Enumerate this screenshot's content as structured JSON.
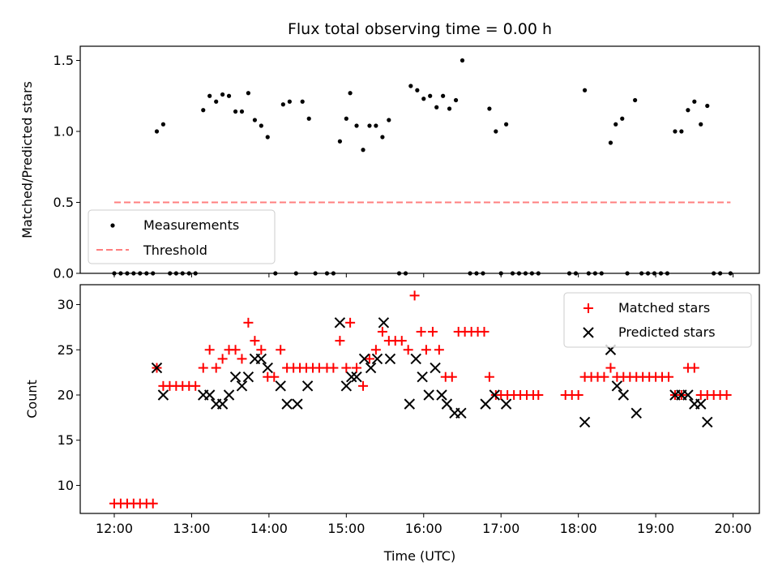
{
  "chart_data": [
    {
      "type": "scatter",
      "title": "Flux total observing time = 0.00 h",
      "xlabel": "",
      "ylabel": "Matched/Predicted stars",
      "xlim": [
        -0.44,
        8.34
      ],
      "ylim": [
        0,
        1.6
      ],
      "yticks": [
        0.0,
        0.5,
        1.0,
        1.5
      ],
      "ytick_labels": [
        "0.0",
        "0.5",
        "1.0",
        "1.5"
      ],
      "xticks": [
        0,
        1,
        2,
        3,
        4,
        5,
        6,
        7,
        8
      ],
      "legend_placement": "lower-left",
      "series": [
        {
          "name": "Measurements",
          "color": "#000000",
          "marker": "dot",
          "points": [
            [
              0,
              0
            ],
            [
              0.083,
              0
            ],
            [
              0.167,
              0
            ],
            [
              0.25,
              0
            ],
            [
              0.333,
              0
            ],
            [
              0.417,
              0
            ],
            [
              0.5,
              0
            ],
            [
              0.55,
              1.0
            ],
            [
              0.633,
              1.05
            ],
            [
              0.72,
              0
            ],
            [
              0.8,
              0
            ],
            [
              0.883,
              0
            ],
            [
              0.967,
              0
            ],
            [
              1.05,
              0
            ],
            [
              1.15,
              1.15
            ],
            [
              1.233,
              1.25
            ],
            [
              1.317,
              1.21
            ],
            [
              1.4,
              1.26
            ],
            [
              1.483,
              1.25
            ],
            [
              1.567,
              1.14
            ],
            [
              1.65,
              1.14
            ],
            [
              1.733,
              1.27
            ],
            [
              1.817,
              1.08
            ],
            [
              1.9,
              1.04
            ],
            [
              1.983,
              0.96
            ],
            [
              2.083,
              0
            ],
            [
              2.183,
              1.19
            ],
            [
              2.267,
              1.21
            ],
            [
              2.35,
              0
            ],
            [
              2.433,
              1.21
            ],
            [
              2.517,
              1.09
            ],
            [
              2.6,
              0
            ],
            [
              2.75,
              0
            ],
            [
              2.833,
              0
            ],
            [
              2.917,
              0.93
            ],
            [
              3.0,
              1.09
            ],
            [
              3.05,
              1.27
            ],
            [
              3.133,
              1.04
            ],
            [
              3.217,
              0.87
            ],
            [
              3.3,
              1.04
            ],
            [
              3.383,
              1.04
            ],
            [
              3.467,
              0.96
            ],
            [
              3.55,
              1.08
            ],
            [
              3.683,
              0
            ],
            [
              3.767,
              0
            ],
            [
              3.833,
              1.32
            ],
            [
              3.917,
              1.29
            ],
            [
              4.0,
              1.23
            ],
            [
              4.083,
              1.25
            ],
            [
              4.167,
              1.17
            ],
            [
              4.25,
              1.25
            ],
            [
              4.333,
              1.16
            ],
            [
              4.417,
              1.22
            ],
            [
              4.5,
              1.5
            ],
            [
              4.6,
              0
            ],
            [
              4.683,
              0
            ],
            [
              4.767,
              0
            ],
            [
              4.85,
              1.16
            ],
            [
              4.933,
              1.0
            ],
            [
              5.0,
              0
            ],
            [
              5.067,
              1.05
            ],
            [
              5.15,
              0
            ],
            [
              5.233,
              0
            ],
            [
              5.317,
              0
            ],
            [
              5.4,
              0
            ],
            [
              5.483,
              0
            ],
            [
              5.883,
              0
            ],
            [
              5.967,
              0
            ],
            [
              6.083,
              1.29
            ],
            [
              6.133,
              0
            ],
            [
              6.217,
              0
            ],
            [
              6.3,
              0
            ],
            [
              6.417,
              0.92
            ],
            [
              6.483,
              1.05
            ],
            [
              6.567,
              1.09
            ],
            [
              6.633,
              0
            ],
            [
              6.733,
              1.22
            ],
            [
              6.817,
              0
            ],
            [
              6.9,
              0
            ],
            [
              6.983,
              0
            ],
            [
              7.067,
              0
            ],
            [
              7.15,
              0
            ],
            [
              7.25,
              1.0
            ],
            [
              7.333,
              1.0
            ],
            [
              7.417,
              1.15
            ],
            [
              7.5,
              1.21
            ],
            [
              7.583,
              1.05
            ],
            [
              7.667,
              1.18
            ],
            [
              7.75,
              0
            ],
            [
              7.833,
              0
            ],
            [
              7.967,
              0
            ]
          ]
        },
        {
          "name": "Threshold",
          "color": "#ff7f7f",
          "style": "dashed",
          "x": [
            0,
            7.967
          ],
          "y": [
            0.5,
            0.5
          ]
        }
      ]
    },
    {
      "type": "scatter",
      "title": "",
      "xlabel": "Time (UTC)",
      "ylabel": "Count",
      "xlim": [
        -0.44,
        8.34
      ],
      "ylim": [
        6.9,
        32.2
      ],
      "yticks": [
        10,
        15,
        20,
        25,
        30
      ],
      "ytick_labels": [
        "10",
        "15",
        "20",
        "25",
        "30"
      ],
      "xticks": [
        0,
        1,
        2,
        3,
        4,
        5,
        6,
        7,
        8
      ],
      "xtick_labels": [
        "12:00",
        "13:00",
        "14:00",
        "15:00",
        "16:00",
        "17:00",
        "18:00",
        "19:00",
        "20:00"
      ],
      "legend_placement": "upper-right",
      "series": [
        {
          "name": "Matched stars",
          "color": "#ff0000",
          "marker": "plus",
          "points": [
            [
              0,
              8
            ],
            [
              0.083,
              8
            ],
            [
              0.167,
              8
            ],
            [
              0.25,
              8
            ],
            [
              0.333,
              8
            ],
            [
              0.417,
              8
            ],
            [
              0.5,
              8
            ],
            [
              0.55,
              23
            ],
            [
              0.633,
              21
            ],
            [
              0.717,
              21
            ],
            [
              0.8,
              21
            ],
            [
              0.883,
              21
            ],
            [
              0.967,
              21
            ],
            [
              1.05,
              21
            ],
            [
              1.15,
              23
            ],
            [
              1.233,
              25
            ],
            [
              1.317,
              23
            ],
            [
              1.4,
              24
            ],
            [
              1.483,
              25
            ],
            [
              1.567,
              25
            ],
            [
              1.65,
              24
            ],
            [
              1.733,
              28
            ],
            [
              1.817,
              26
            ],
            [
              1.9,
              25
            ],
            [
              1.983,
              22
            ],
            [
              2.067,
              22
            ],
            [
              2.15,
              25
            ],
            [
              2.233,
              23
            ],
            [
              2.317,
              23
            ],
            [
              2.4,
              23
            ],
            [
              2.483,
              23
            ],
            [
              2.567,
              23
            ],
            [
              2.65,
              23
            ],
            [
              2.75,
              23
            ],
            [
              2.833,
              23
            ],
            [
              2.917,
              26
            ],
            [
              3.0,
              23
            ],
            [
              3.05,
              28
            ],
            [
              3.133,
              23
            ],
            [
              3.217,
              21
            ],
            [
              3.3,
              24
            ],
            [
              3.383,
              25
            ],
            [
              3.467,
              27
            ],
            [
              3.55,
              26
            ],
            [
              3.633,
              26
            ],
            [
              3.717,
              26
            ],
            [
              3.8,
              25
            ],
            [
              3.883,
              31
            ],
            [
              3.967,
              27
            ],
            [
              4.033,
              25
            ],
            [
              4.117,
              27
            ],
            [
              4.2,
              25
            ],
            [
              4.283,
              22
            ],
            [
              4.367,
              22
            ],
            [
              4.45,
              27
            ],
            [
              4.533,
              27
            ],
            [
              4.617,
              27
            ],
            [
              4.7,
              27
            ],
            [
              4.783,
              27
            ],
            [
              4.85,
              22
            ],
            [
              4.933,
              20
            ],
            [
              5.0,
              20
            ],
            [
              5.083,
              20
            ],
            [
              5.167,
              20
            ],
            [
              5.25,
              20
            ],
            [
              5.333,
              20
            ],
            [
              5.417,
              20
            ],
            [
              5.483,
              20
            ],
            [
              5.833,
              20
            ],
            [
              5.917,
              20
            ],
            [
              6.0,
              20
            ],
            [
              6.083,
              22
            ],
            [
              6.167,
              22
            ],
            [
              6.25,
              22
            ],
            [
              6.333,
              22
            ],
            [
              6.417,
              23
            ],
            [
              6.5,
              22
            ],
            [
              6.583,
              22
            ],
            [
              6.667,
              22
            ],
            [
              6.75,
              22
            ],
            [
              6.833,
              22
            ],
            [
              6.917,
              22
            ],
            [
              7.0,
              22
            ],
            [
              7.083,
              22
            ],
            [
              7.167,
              22
            ],
            [
              7.25,
              20
            ],
            [
              7.333,
              20
            ],
            [
              7.417,
              23
            ],
            [
              7.5,
              23
            ],
            [
              7.583,
              20
            ],
            [
              7.667,
              20
            ],
            [
              7.75,
              20
            ],
            [
              7.833,
              20
            ],
            [
              7.917,
              20
            ]
          ]
        },
        {
          "name": "Predicted stars",
          "color": "#000000",
          "marker": "x",
          "points": [
            [
              0.55,
              23
            ],
            [
              0.633,
              20
            ],
            [
              1.15,
              20
            ],
            [
              1.233,
              20
            ],
            [
              1.317,
              19
            ],
            [
              1.4,
              19
            ],
            [
              1.483,
              20
            ],
            [
              1.567,
              22
            ],
            [
              1.65,
              21
            ],
            [
              1.733,
              22
            ],
            [
              1.817,
              24
            ],
            [
              1.9,
              24
            ],
            [
              1.983,
              23
            ],
            [
              2.15,
              21
            ],
            [
              2.233,
              19
            ],
            [
              2.367,
              19
            ],
            [
              2.5,
              21
            ],
            [
              2.917,
              28
            ],
            [
              3.0,
              21
            ],
            [
              3.067,
              22
            ],
            [
              3.133,
              22
            ],
            [
              3.233,
              24
            ],
            [
              3.317,
              23
            ],
            [
              3.4,
              24
            ],
            [
              3.483,
              28
            ],
            [
              3.567,
              24
            ],
            [
              3.817,
              19
            ],
            [
              3.9,
              24
            ],
            [
              3.983,
              22
            ],
            [
              4.067,
              20
            ],
            [
              4.15,
              23
            ],
            [
              4.233,
              20
            ],
            [
              4.3,
              19
            ],
            [
              4.4,
              18
            ],
            [
              4.483,
              18
            ],
            [
              4.8,
              19
            ],
            [
              4.917,
              20
            ],
            [
              5.067,
              19
            ],
            [
              6.083,
              17
            ],
            [
              6.417,
              25
            ],
            [
              6.5,
              21
            ],
            [
              6.583,
              20
            ],
            [
              6.75,
              18
            ],
            [
              7.25,
              20
            ],
            [
              7.333,
              20
            ],
            [
              7.417,
              20
            ],
            [
              7.5,
              19
            ],
            [
              7.583,
              19
            ],
            [
              7.667,
              17
            ]
          ]
        }
      ]
    }
  ]
}
